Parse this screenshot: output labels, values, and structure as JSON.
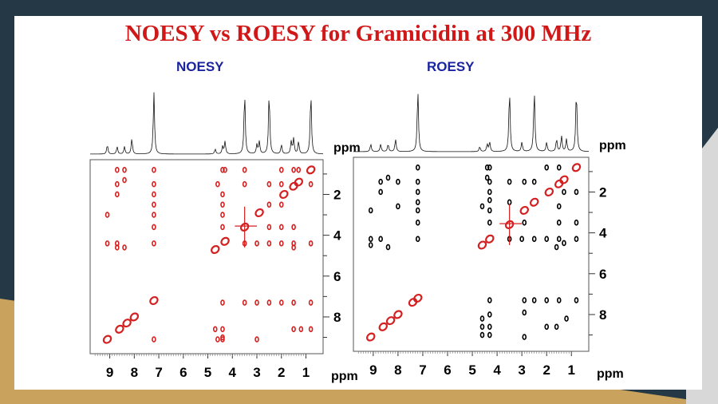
{
  "title": "NOESY vs ROESY for Gramicidin at 300 MHz",
  "chart_data": [
    {
      "type": "scatter",
      "title": "NOESY",
      "xlabel": "ppm",
      "ylabel": "ppm",
      "xlim": [
        9.8,
        0.3
      ],
      "ylim": [
        0.3,
        9.8
      ],
      "x_ticks": [
        9,
        8,
        7,
        6,
        5,
        4,
        3,
        2,
        1
      ],
      "y_ticks": [
        2,
        4,
        6,
        8
      ],
      "projection_peaks": [
        [
          9.1,
          0.15
        ],
        [
          8.7,
          0.12
        ],
        [
          8.4,
          0.12
        ],
        [
          8.1,
          0.25
        ],
        [
          7.2,
          1.0
        ],
        [
          4.7,
          0.08
        ],
        [
          4.4,
          0.12
        ],
        [
          4.3,
          0.2
        ],
        [
          3.5,
          1.0
        ],
        [
          3.0,
          0.15
        ],
        [
          2.9,
          0.2
        ],
        [
          2.5,
          1.0
        ],
        [
          2.0,
          0.15
        ],
        [
          1.6,
          0.2
        ],
        [
          1.5,
          0.25
        ],
        [
          1.3,
          0.2
        ],
        [
          0.8,
          1.0
        ]
      ],
      "peaks": {
        "diagonal": [
          [
            0.8,
            0.8
          ],
          [
            1.3,
            1.4
          ],
          [
            1.5,
            1.6
          ],
          [
            1.9,
            2.0
          ],
          [
            2.9,
            2.9
          ],
          [
            3.5,
            3.6
          ],
          [
            4.3,
            4.3
          ],
          [
            4.7,
            4.7
          ],
          [
            7.2,
            7.2
          ],
          [
            8.0,
            8.0
          ],
          [
            8.3,
            8.3
          ],
          [
            8.6,
            8.6
          ],
          [
            9.1,
            9.1
          ]
        ],
        "cross": [
          [
            8.7,
            0.8
          ],
          [
            8.4,
            0.8
          ],
          [
            7.2,
            0.8
          ],
          [
            4.4,
            0.8
          ],
          [
            4.3,
            0.8
          ],
          [
            3.5,
            0.8
          ],
          [
            2.0,
            0.8
          ],
          [
            1.5,
            0.8
          ],
          [
            1.3,
            0.8
          ],
          [
            8.4,
            1.3
          ],
          [
            8.7,
            1.5
          ],
          [
            8.7,
            2.0
          ],
          [
            7.2,
            1.5
          ],
          [
            7.2,
            2.0
          ],
          [
            7.2,
            2.5
          ],
          [
            7.2,
            3.0
          ],
          [
            7.2,
            3.6
          ],
          [
            7.2,
            4.4
          ],
          [
            7.2,
            9.1
          ],
          [
            9.1,
            3.0
          ],
          [
            4.6,
            1.5
          ],
          [
            4.4,
            2.0
          ],
          [
            4.4,
            2.5
          ],
          [
            4.4,
            3.0
          ],
          [
            4.4,
            3.6
          ],
          [
            3.5,
            1.5
          ],
          [
            2.5,
            1.5
          ],
          [
            2.0,
            1.5
          ],
          [
            0.8,
            1.5
          ],
          [
            2.5,
            2.5
          ],
          [
            2.0,
            2.5
          ],
          [
            1.5,
            3.6
          ],
          [
            2.0,
            3.6
          ],
          [
            2.5,
            3.6
          ],
          [
            9.1,
            4.4
          ],
          [
            8.7,
            4.4
          ],
          [
            8.4,
            4.6
          ],
          [
            8.7,
            4.6
          ],
          [
            3.5,
            4.4
          ],
          [
            3.0,
            4.4
          ],
          [
            2.5,
            4.4
          ],
          [
            2.0,
            4.4
          ],
          [
            1.5,
            4.4
          ],
          [
            0.8,
            4.4
          ],
          [
            1.5,
            4.6
          ],
          [
            4.4,
            7.3
          ],
          [
            3.5,
            7.3
          ],
          [
            3.0,
            7.3
          ],
          [
            2.5,
            7.3
          ],
          [
            2.0,
            7.3
          ],
          [
            1.5,
            7.3
          ],
          [
            0.8,
            7.3
          ],
          [
            4.7,
            8.6
          ],
          [
            4.4,
            8.6
          ],
          [
            4.4,
            9.1
          ],
          [
            4.6,
            9.1
          ],
          [
            3.0,
            9.1
          ],
          [
            1.5,
            8.6
          ],
          [
            1.2,
            8.6
          ],
          [
            0.8,
            8.6
          ],
          [
            4.4,
            9.0
          ]
        ]
      }
    },
    {
      "type": "scatter",
      "title": "ROESY",
      "xlabel": "ppm",
      "ylabel": "ppm",
      "xlim": [
        9.8,
        0.3
      ],
      "ylim": [
        0.3,
        9.8
      ],
      "x_ticks": [
        9,
        8,
        7,
        6,
        5,
        4,
        3,
        2,
        1
      ],
      "y_ticks": [
        2,
        4,
        6,
        8
      ],
      "projection_peaks": [
        [
          9.1,
          0.12
        ],
        [
          8.7,
          0.12
        ],
        [
          8.4,
          0.12
        ],
        [
          8.1,
          0.2
        ],
        [
          7.2,
          1.0
        ],
        [
          4.7,
          0.08
        ],
        [
          4.4,
          0.12
        ],
        [
          4.3,
          0.15
        ],
        [
          3.5,
          1.0
        ],
        [
          3.0,
          0.15
        ],
        [
          2.5,
          1.0
        ],
        [
          2.0,
          0.15
        ],
        [
          1.6,
          0.2
        ],
        [
          1.4,
          0.25
        ],
        [
          1.2,
          0.2
        ],
        [
          0.8,
          1.0
        ]
      ],
      "peaks": {
        "diagonal": [
          [
            0.8,
            0.8
          ],
          [
            1.3,
            1.4
          ],
          [
            1.5,
            1.6
          ],
          [
            1.9,
            2.0
          ],
          [
            2.5,
            2.5
          ],
          [
            2.9,
            2.9
          ],
          [
            3.5,
            3.6
          ],
          [
            4.3,
            4.3
          ],
          [
            4.6,
            4.6
          ],
          [
            7.2,
            7.2
          ],
          [
            7.4,
            7.4
          ],
          [
            8.0,
            8.0
          ],
          [
            8.3,
            8.3
          ],
          [
            8.6,
            8.6
          ],
          [
            9.1,
            9.1
          ]
        ],
        "cross": [
          [
            7.2,
            0.8
          ],
          [
            4.4,
            0.8
          ],
          [
            4.3,
            0.8
          ],
          [
            2.0,
            0.8
          ],
          [
            1.5,
            0.8
          ],
          [
            8.4,
            1.3
          ],
          [
            4.4,
            1.3
          ],
          [
            4.3,
            1.5
          ],
          [
            3.5,
            1.5
          ],
          [
            2.9,
            1.5
          ],
          [
            2.5,
            1.5
          ],
          [
            1.3,
            2.0
          ],
          [
            0.8,
            2.0
          ],
          [
            8.7,
            1.5
          ],
          [
            8.0,
            1.5
          ],
          [
            7.2,
            1.5
          ],
          [
            7.2,
            2.0
          ],
          [
            8.7,
            2.0
          ],
          [
            4.3,
            2.0
          ],
          [
            4.3,
            2.4
          ],
          [
            9.1,
            2.9
          ],
          [
            8.0,
            2.7
          ],
          [
            7.2,
            2.9
          ],
          [
            7.2,
            2.5
          ],
          [
            4.3,
            2.9
          ],
          [
            4.6,
            2.7
          ],
          [
            3.5,
            2.5
          ],
          [
            1.5,
            2.7
          ],
          [
            7.2,
            3.5
          ],
          [
            4.3,
            3.5
          ],
          [
            2.9,
            3.5
          ],
          [
            1.5,
            3.5
          ],
          [
            0.8,
            3.5
          ],
          [
            9.1,
            4.3
          ],
          [
            8.7,
            4.3
          ],
          [
            7.2,
            4.3
          ],
          [
            3.5,
            4.3
          ],
          [
            3.0,
            4.3
          ],
          [
            2.5,
            4.3
          ],
          [
            2.0,
            4.3
          ],
          [
            1.5,
            4.3
          ],
          [
            1.3,
            4.5
          ],
          [
            0.8,
            4.3
          ],
          [
            9.1,
            4.6
          ],
          [
            8.4,
            4.7
          ],
          [
            1.6,
            4.7
          ],
          [
            4.3,
            7.3
          ],
          [
            2.9,
            7.3
          ],
          [
            2.5,
            7.3
          ],
          [
            2.0,
            7.3
          ],
          [
            1.5,
            7.3
          ],
          [
            0.8,
            7.3
          ],
          [
            4.3,
            8.0
          ],
          [
            2.9,
            7.9
          ],
          [
            1.2,
            8.2
          ],
          [
            4.6,
            8.2
          ],
          [
            4.3,
            8.6
          ],
          [
            4.6,
            8.6
          ],
          [
            2.0,
            8.6
          ],
          [
            1.6,
            8.6
          ],
          [
            4.6,
            9.0
          ],
          [
            4.3,
            9.0
          ],
          [
            2.9,
            9.1
          ]
        ]
      }
    }
  ],
  "colors": {
    "diagonal": "#d42020",
    "cross_noesy": "#d42020",
    "cross_roesy": "#000000",
    "title": "#d01818",
    "subtitle": "#1a23a0"
  }
}
